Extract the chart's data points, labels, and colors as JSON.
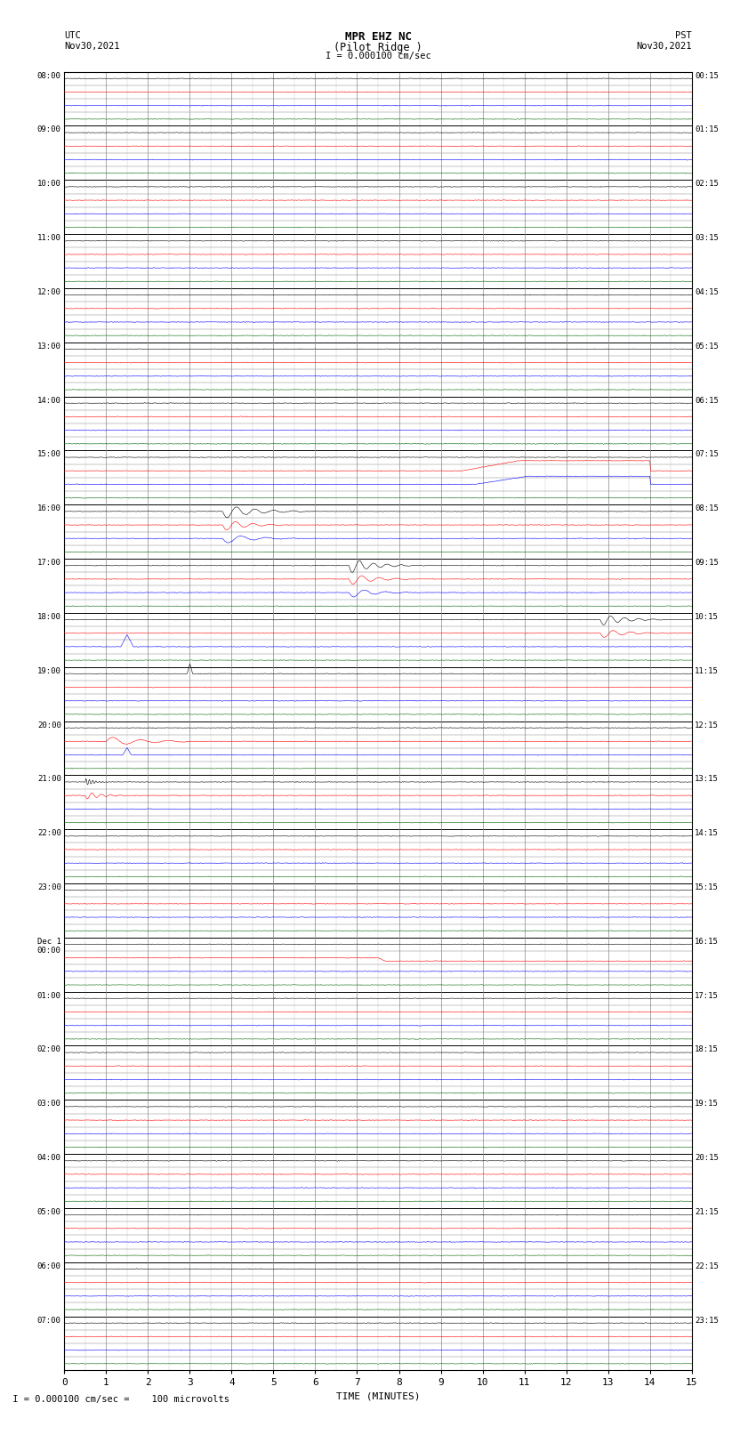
{
  "title_line1": "MPR EHZ NC",
  "title_line2": "(Pilot Ridge )",
  "scale_text": "I = 0.000100 cm/sec",
  "left_label_line1": "UTC",
  "left_label_line2": "Nov30,2021",
  "right_label_line1": "PST",
  "right_label_line2": "Nov30,2021",
  "bottom_label": "TIME (MINUTES)",
  "footer_text": " I = 0.000100 cm/sec =    100 microvolts",
  "xlim": [
    0,
    15
  ],
  "xticks": [
    0,
    1,
    2,
    3,
    4,
    5,
    6,
    7,
    8,
    9,
    10,
    11,
    12,
    13,
    14,
    15
  ],
  "background_color": "#ffffff",
  "grid_color": "#999999",
  "num_rows": 96,
  "utc_times_major": [
    "08:00",
    "09:00",
    "10:00",
    "11:00",
    "12:00",
    "13:00",
    "14:00",
    "15:00",
    "16:00",
    "17:00",
    "18:00",
    "19:00",
    "20:00",
    "21:00",
    "22:00",
    "23:00",
    "Dec 1\n00:00",
    "01:00",
    "02:00",
    "03:00",
    "04:00",
    "05:00",
    "06:00",
    "07:00"
  ],
  "pst_times_major": [
    "00:15",
    "01:15",
    "02:15",
    "03:15",
    "04:15",
    "05:15",
    "06:15",
    "07:15",
    "08:15",
    "09:15",
    "10:15",
    "11:15",
    "12:15",
    "13:15",
    "14:15",
    "15:15",
    "16:15",
    "17:15",
    "18:15",
    "19:15",
    "20:15",
    "21:15",
    "22:15",
    "23:15"
  ],
  "row_colors": [
    "#000000",
    "#ff0000",
    "#0000ff",
    "#006400"
  ],
  "fig_width": 8.5,
  "fig_height": 16.13
}
